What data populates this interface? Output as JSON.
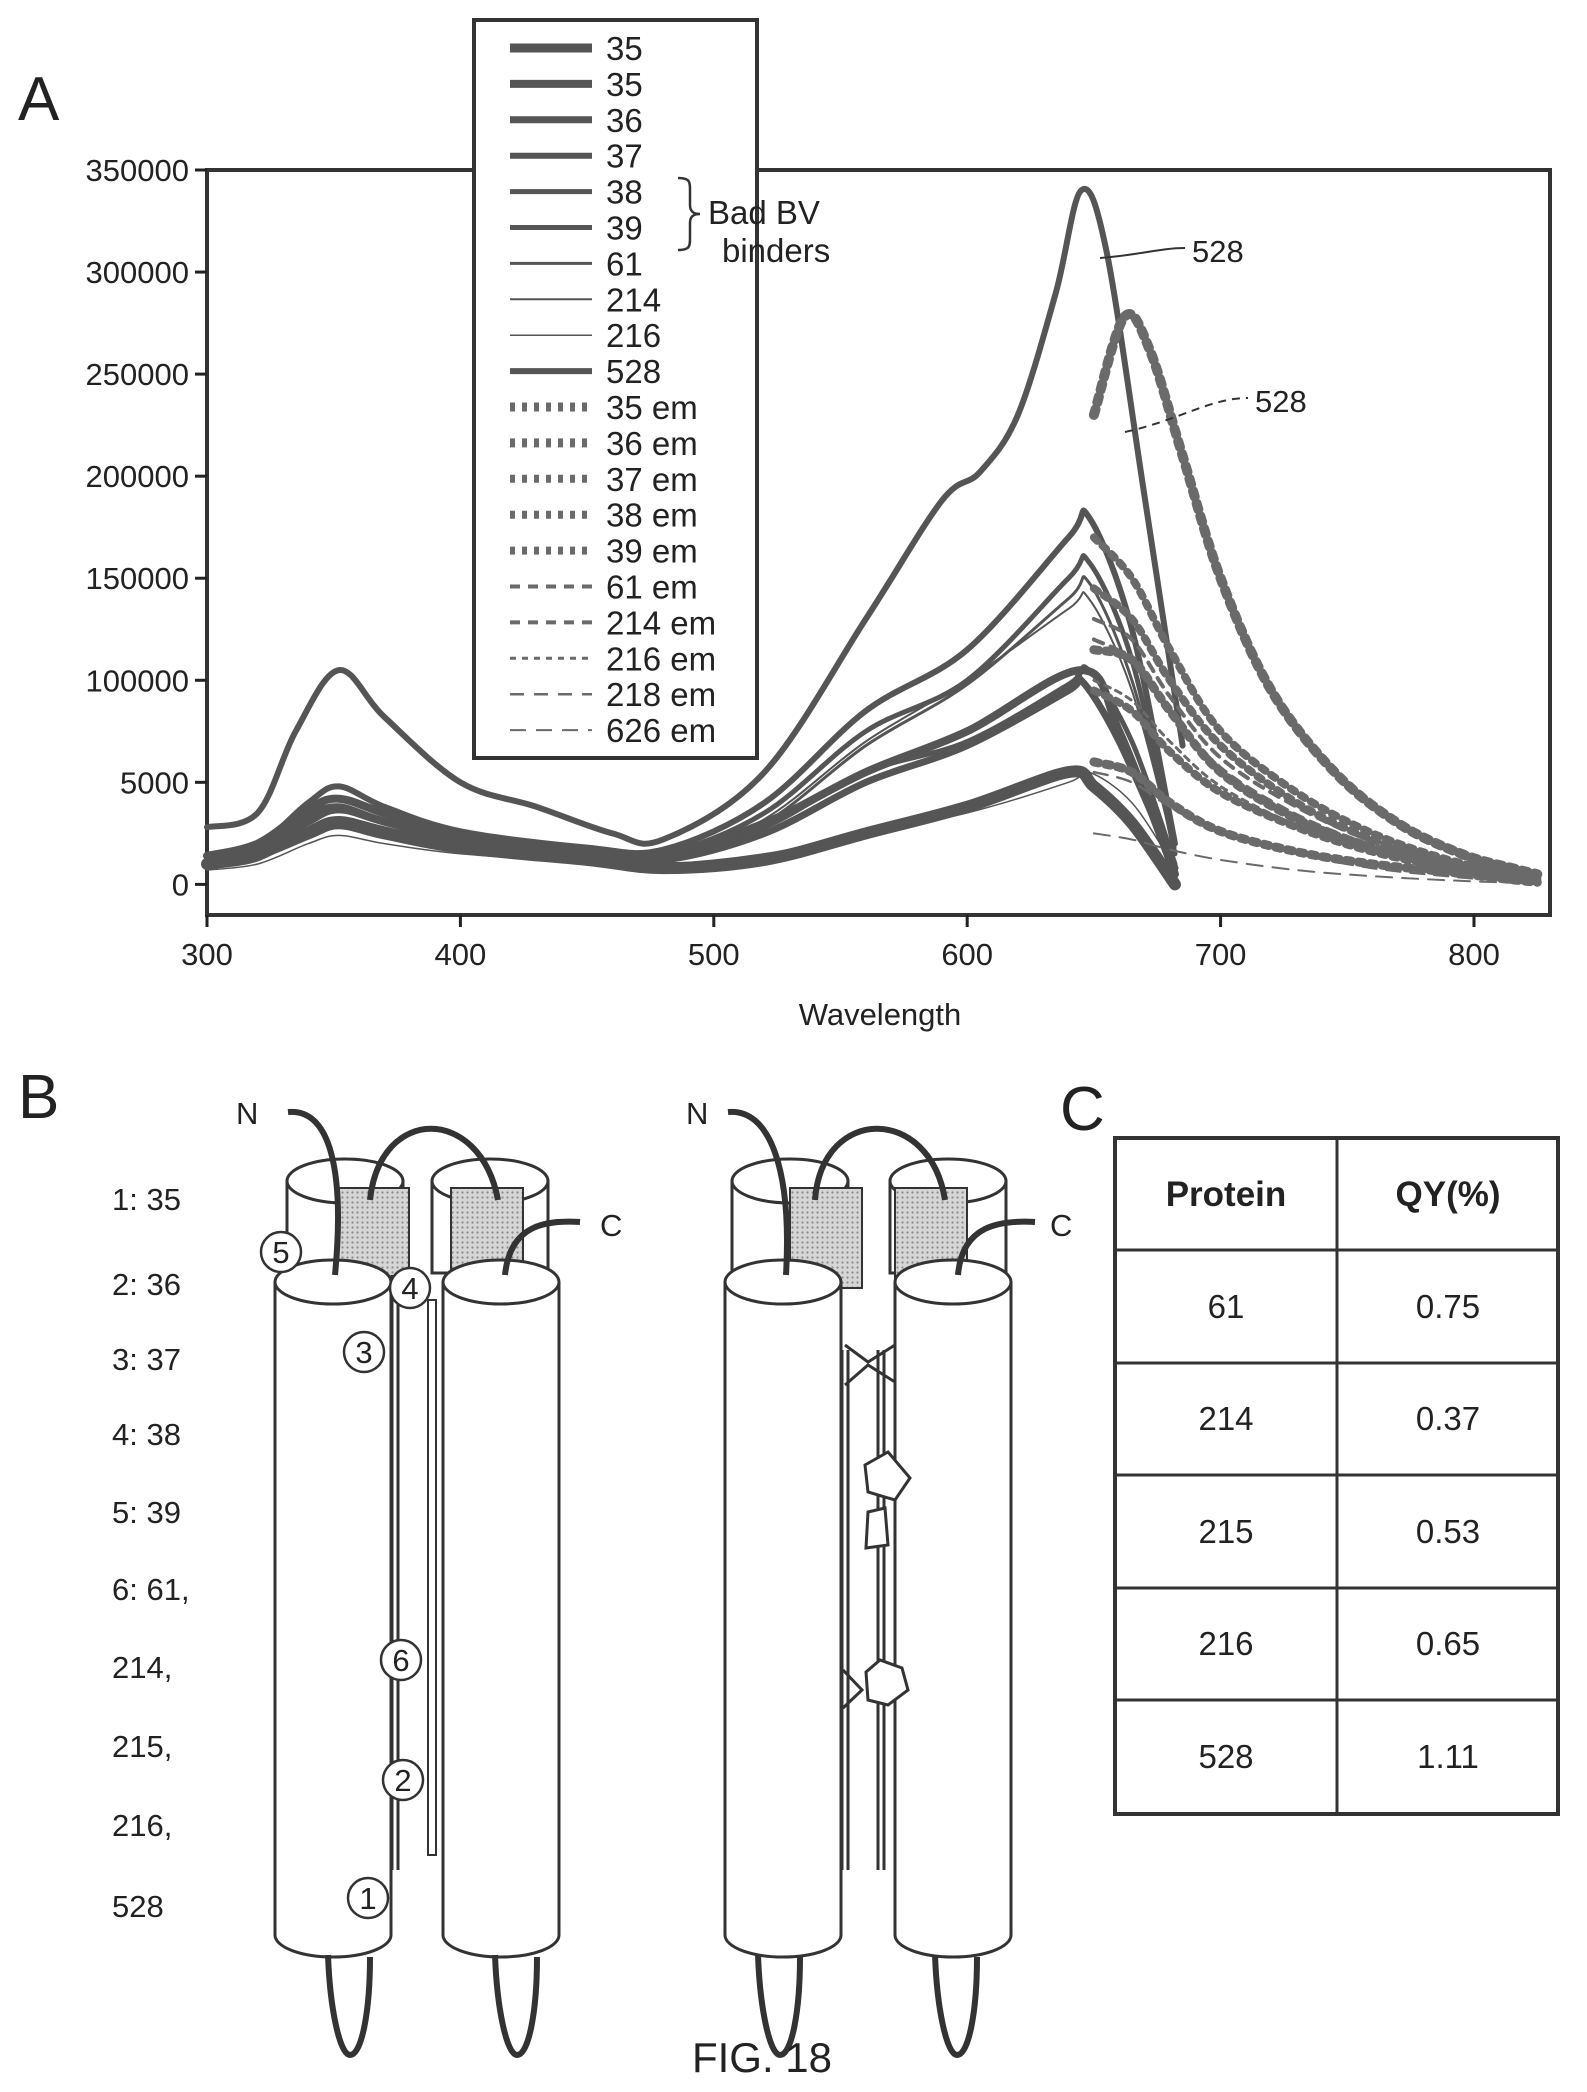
{
  "panels": {
    "a": "A",
    "b": "B",
    "c": "C"
  },
  "caption": "FIG. 18",
  "chart_data": {
    "type": "line",
    "xlabel": "Wavelength",
    "ylabel": "",
    "xlim": [
      300,
      830
    ],
    "ylim": [
      -15000,
      350000
    ],
    "y_ticks": [
      "350000",
      "300000",
      "250000",
      "200000",
      "150000",
      "100000",
      "5000",
      "0"
    ],
    "y_tick_values": [
      350000,
      300000,
      250000,
      200000,
      150000,
      100000,
      50000,
      0
    ],
    "x_ticks": [
      300,
      400,
      500,
      600,
      700,
      800
    ],
    "legend_position": "top-center",
    "legend_note": "Bad BV binders",
    "legend_note_lines": [
      "Bad BV",
      "binders"
    ],
    "annotations": [
      "528",
      "528"
    ],
    "series": [
      {
        "name": "35",
        "style": "excitation",
        "w": 12,
        "x": [
          300,
          320,
          340,
          352,
          370,
          400,
          450,
          480,
          520,
          560,
          600,
          640,
          650,
          665,
          682
        ],
        "y": [
          10000,
          15000,
          25000,
          30000,
          25000,
          18000,
          12000,
          8000,
          12000,
          25000,
          38000,
          55000,
          48000,
          30000,
          0
        ]
      },
      {
        "name": "35",
        "style": "excitation",
        "w": 8,
        "x": [
          300,
          320,
          340,
          352,
          370,
          400,
          450,
          480,
          520,
          560,
          600,
          645,
          660,
          682
        ],
        "y": [
          14000,
          20000,
          37000,
          42000,
          35000,
          25000,
          17000,
          15000,
          30000,
          55000,
          75000,
          105000,
          75000,
          5000
        ]
      },
      {
        "name": "36",
        "style": "excitation",
        "w": 7,
        "x": [
          300,
          320,
          340,
          352,
          370,
          400,
          450,
          480,
          520,
          560,
          600,
          640,
          645,
          660,
          682
        ],
        "y": [
          11000,
          16000,
          33000,
          38000,
          31000,
          23000,
          16000,
          12000,
          25000,
          50000,
          68000,
          95000,
          100000,
          70000,
          8000
        ]
      },
      {
        "name": "37",
        "style": "excitation",
        "w": 6,
        "x": [
          300,
          320,
          340,
          352,
          370,
          400,
          450,
          480,
          520,
          560,
          600,
          640,
          648,
          665,
          682
        ],
        "y": [
          13000,
          19000,
          40000,
          48000,
          38000,
          26000,
          18000,
          17000,
          40000,
          85000,
          115000,
          170000,
          180000,
          125000,
          20000
        ]
      },
      {
        "name": "38",
        "style": "excitation",
        "w": 5,
        "x": [
          300,
          320,
          340,
          352,
          370,
          400,
          450,
          480,
          520,
          560,
          600,
          640,
          648,
          665,
          682
        ],
        "y": [
          12000,
          17000,
          35000,
          42000,
          34000,
          24000,
          17000,
          15000,
          35000,
          75000,
          100000,
          150000,
          158000,
          110000,
          15000
        ]
      },
      {
        "name": "39",
        "style": "excitation",
        "w": 5,
        "x": [
          300,
          320,
          340,
          352,
          370,
          400,
          450,
          480,
          520,
          560,
          600,
          640,
          648,
          665,
          682
        ],
        "y": [
          11000,
          15000,
          30000,
          36000,
          30000,
          21000,
          15000,
          13000,
          28000,
          55000,
          70000,
          98000,
          105000,
          70000,
          10000
        ]
      },
      {
        "name": "61",
        "style": "excitation",
        "w": 3,
        "x": [
          300,
          320,
          340,
          352,
          370,
          400,
          450,
          480,
          520,
          560,
          600,
          640,
          648,
          665,
          682
        ],
        "y": [
          8000,
          12000,
          25000,
          30000,
          26000,
          18000,
          13000,
          11000,
          30000,
          68000,
          98000,
          140000,
          148000,
          100000,
          18000
        ]
      },
      {
        "name": "214",
        "style": "excitation",
        "w": 2,
        "x": [
          300,
          320,
          340,
          352,
          370,
          400,
          450,
          480,
          520,
          560,
          600,
          640,
          648,
          665,
          682
        ],
        "y": [
          9000,
          13000,
          28000,
          33000,
          28000,
          20000,
          14000,
          12000,
          32000,
          70000,
          100000,
          135000,
          140000,
          95000,
          15000
        ]
      },
      {
        "name": "216",
        "style": "excitation",
        "w": 1.5,
        "x": [
          300,
          320,
          340,
          352,
          370,
          400,
          450,
          480,
          520,
          560,
          600,
          640,
          648,
          665,
          682
        ],
        "y": [
          7000,
          10000,
          20000,
          24000,
          20000,
          15000,
          11000,
          10000,
          15000,
          25000,
          35000,
          50000,
          55000,
          40000,
          8000
        ]
      },
      {
        "name": "528",
        "style": "excitation",
        "w": 6,
        "x": [
          300,
          320,
          335,
          352,
          370,
          400,
          430,
          460,
          480,
          520,
          560,
          590,
          605,
          620,
          635,
          645,
          655,
          670,
          685
        ],
        "y": [
          28000,
          35000,
          75000,
          105000,
          82000,
          50000,
          38000,
          25000,
          22000,
          55000,
          130000,
          188000,
          202000,
          230000,
          290000,
          340000,
          310000,
          190000,
          68000
        ]
      },
      {
        "name": "35 em",
        "style": "emission",
        "w": 9,
        "dash": "5 7",
        "x": [
          650,
          665,
          680,
          700,
          730,
          760,
          790,
          810,
          825
        ],
        "y": [
          60000,
          55000,
          40000,
          26000,
          16000,
          10000,
          6000,
          3000,
          1000
        ]
      },
      {
        "name": "36 em",
        "style": "emission",
        "w": 9,
        "dash": "5 7",
        "x": [
          650,
          665,
          680,
          700,
          730,
          760,
          790,
          810,
          825
        ],
        "y": [
          115000,
          110000,
          85000,
          55000,
          32000,
          18000,
          9000,
          5000,
          2000
        ]
      },
      {
        "name": "37 em",
        "style": "emission",
        "w": 8,
        "dash": "5 7",
        "x": [
          650,
          665,
          680,
          700,
          730,
          760,
          790,
          810,
          825
        ],
        "y": [
          170000,
          150000,
          115000,
          75000,
          45000,
          25000,
          12000,
          7000,
          3000
        ]
      },
      {
        "name": "38 em",
        "style": "emission",
        "w": 8,
        "dash": "5 7",
        "x": [
          650,
          665,
          680,
          700,
          730,
          760,
          790,
          810,
          825
        ],
        "y": [
          145000,
          130000,
          100000,
          68000,
          40000,
          22000,
          11000,
          6000,
          2500
        ]
      },
      {
        "name": "39 em",
        "style": "emission",
        "w": 8,
        "dash": "5 7",
        "x": [
          650,
          665,
          680,
          700,
          730,
          760,
          790,
          810,
          825
        ],
        "y": [
          95000,
          85000,
          65000,
          45000,
          28000,
          16000,
          8000,
          4000,
          1500
        ]
      },
      {
        "name": "61 em",
        "style": "emission",
        "w": 4,
        "dash": "10 8",
        "x": [
          650,
          665,
          680,
          700,
          730,
          760,
          790,
          810,
          825
        ],
        "y": [
          130000,
          120000,
          92000,
          62000,
          38000,
          21000,
          10000,
          5000,
          2000
        ]
      },
      {
        "name": "214 em",
        "style": "emission",
        "w": 4,
        "dash": "10 8",
        "x": [
          650,
          665,
          680,
          700,
          730,
          760,
          790,
          810,
          825
        ],
        "y": [
          120000,
          110000,
          85000,
          57000,
          34000,
          19000,
          9000,
          4500,
          1800
        ]
      },
      {
        "name": "216 em",
        "style": "emission",
        "w": 3,
        "dash": "6 6",
        "x": [
          650,
          665,
          680,
          700,
          730,
          760,
          790,
          810,
          825
        ],
        "y": [
          100000,
          90000,
          70000,
          48000,
          29000,
          16000,
          8000,
          4000,
          1500
        ]
      },
      {
        "name": "218 em",
        "style": "emission",
        "w": 2.5,
        "dash": "14 10",
        "x": [
          650,
          665,
          680,
          700,
          730,
          760,
          790,
          810,
          825
        ],
        "y": [
          55000,
          50000,
          38000,
          25000,
          15000,
          8000,
          4000,
          2000,
          800
        ]
      },
      {
        "name": "626 em",
        "style": "emission",
        "w": 2,
        "dash": "16 10",
        "x": [
          650,
          665,
          680,
          700,
          730,
          760,
          790,
          810,
          825
        ],
        "y": [
          25000,
          22000,
          17000,
          12000,
          7000,
          4000,
          2000,
          1000,
          400
        ]
      },
      {
        "name": "528 em",
        "style": "emission",
        "w": 10,
        "dash": "6 7",
        "x": [
          650,
          662,
          672,
          685,
          700,
          720,
          745,
          770,
          795,
          815,
          825
        ],
        "y": [
          230000,
          278000,
          262000,
          210000,
          150000,
          95000,
          55000,
          30000,
          15000,
          8000,
          5000
        ]
      }
    ]
  },
  "diagram_b": {
    "numbered_labels": [
      "1: 35",
      "2: 36",
      "3: 37",
      "4: 38",
      "5: 39",
      "6: 61,",
      "214,",
      "215,",
      "216,",
      "528"
    ],
    "left_model": {
      "n_label": "N",
      "c_label": "C",
      "markers": [
        "1",
        "2",
        "3",
        "4",
        "5",
        "6"
      ]
    },
    "right_model": {
      "n_label": "N",
      "c_label": "C"
    }
  },
  "table_c": {
    "headers": [
      "Protein",
      "QY(%)"
    ],
    "rows": [
      [
        "61",
        "0.75"
      ],
      [
        "214",
        "0.37"
      ],
      [
        "215",
        "0.53"
      ],
      [
        "216",
        "0.65"
      ],
      [
        "528",
        "1.11"
      ]
    ]
  },
  "colors": {
    "ink": "#222222",
    "fill": "#cfcfcf",
    "background": "#ffffff"
  }
}
